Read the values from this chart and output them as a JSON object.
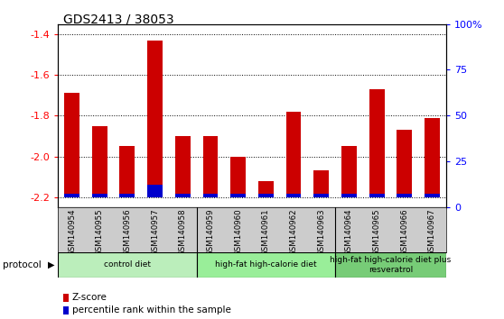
{
  "title": "GDS2413 / 38053",
  "samples": [
    "GSM140954",
    "GSM140955",
    "GSM140956",
    "GSM140957",
    "GSM140958",
    "GSM140959",
    "GSM140960",
    "GSM140961",
    "GSM140962",
    "GSM140963",
    "GSM140964",
    "GSM140965",
    "GSM140966",
    "GSM140967"
  ],
  "zscore": [
    -1.69,
    -1.85,
    -1.95,
    -1.43,
    -1.9,
    -1.9,
    -2.0,
    -2.12,
    -1.78,
    -2.07,
    -1.95,
    -1.67,
    -1.87,
    -1.81
  ],
  "percentile_pct": [
    2,
    2,
    2,
    7,
    2,
    2,
    2,
    2,
    2,
    2,
    2,
    2,
    2,
    2
  ],
  "bar_color_zscore": "#cc0000",
  "bar_color_pct": "#0000cc",
  "ylim_left": [
    -2.25,
    -1.35
  ],
  "ylim_right": [
    0,
    100
  ],
  "yticks_left": [
    -2.2,
    -2.0,
    -1.8,
    -1.6,
    -1.4
  ],
  "yticks_right": [
    0,
    25,
    50,
    75,
    100
  ],
  "ytick_labels_right": [
    "0",
    "25",
    "50",
    "75",
    "100%"
  ],
  "bar_bottom": -2.2,
  "groups": [
    {
      "label": "control diet",
      "start": 0,
      "end": 4,
      "color": "#bbeebb"
    },
    {
      "label": "high-fat high-calorie diet",
      "start": 5,
      "end": 9,
      "color": "#99ee99"
    },
    {
      "label": "high-fat high-calorie diet plus\nresveratrol",
      "start": 10,
      "end": 13,
      "color": "#77cc77"
    }
  ],
  "protocol_label": "protocol",
  "legend_zscore": "Z-score",
  "legend_pct": "percentile rank within the sample",
  "bar_width": 0.55,
  "plot_bg": "#ffffff",
  "label_bg": "#cccccc"
}
